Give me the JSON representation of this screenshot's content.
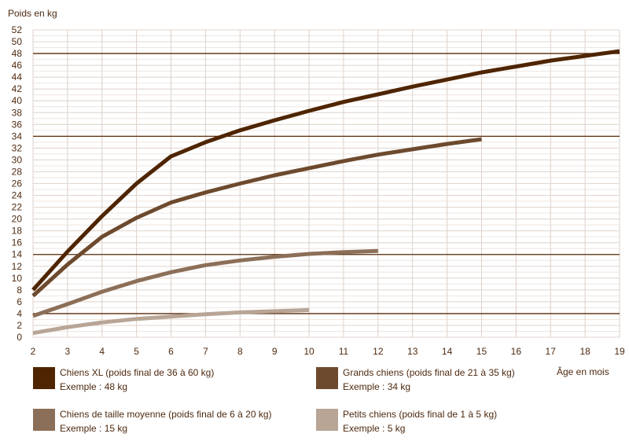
{
  "chart_data": {
    "type": "line",
    "ylabel": "Poids en kg",
    "xlabel": "Âge en mois",
    "xlim": [
      2,
      19
    ],
    "ylim": [
      0,
      52
    ],
    "x_ticks": [
      2,
      3,
      4,
      5,
      6,
      7,
      8,
      9,
      10,
      11,
      12,
      13,
      14,
      15,
      16,
      17,
      18,
      19
    ],
    "y_ticks": [
      0,
      2,
      4,
      6,
      8,
      10,
      12,
      14,
      16,
      18,
      20,
      22,
      24,
      26,
      28,
      30,
      32,
      34,
      36,
      38,
      40,
      42,
      44,
      46,
      48,
      50,
      52
    ],
    "grid": true,
    "reference_lines": [
      48,
      34,
      14,
      4
    ],
    "series": [
      {
        "name": "Chiens XL (poids final de 36 à 60 kg)",
        "example": "Exemple : 48 kg",
        "color": "#4e2500",
        "x": [
          2,
          3,
          4,
          5,
          6,
          7,
          8,
          9,
          10,
          11,
          12,
          13,
          14,
          15,
          16,
          17,
          18,
          19
        ],
        "y": [
          8,
          14.5,
          20.5,
          26,
          30.6,
          33,
          35,
          36.7,
          38.3,
          39.8,
          41.1,
          42.4,
          43.6,
          44.8,
          45.8,
          46.8,
          47.6,
          48.4
        ]
      },
      {
        "name": "Grands chiens (poids final de 21 à 35 kg)",
        "example": "Exemple : 34 kg",
        "color": "#6d4a2e",
        "x": [
          2,
          3,
          4,
          5,
          6,
          7,
          8,
          9,
          10,
          11,
          12,
          13,
          14,
          15
        ],
        "y": [
          7,
          12.3,
          17,
          20.2,
          22.8,
          24.5,
          26,
          27.4,
          28.6,
          29.8,
          30.9,
          31.8,
          32.7,
          33.5
        ]
      },
      {
        "name": "Chiens de taille moyenne (poids final de 6 à 20 kg)",
        "example": "Exemple : 15 kg",
        "color": "#8c6f58",
        "x": [
          2,
          3,
          4,
          5,
          6,
          7,
          8,
          9,
          10,
          11,
          12
        ],
        "y": [
          3.6,
          5.6,
          7.7,
          9.5,
          11,
          12.2,
          13,
          13.6,
          14.1,
          14.4,
          14.6
        ]
      },
      {
        "name": "Petits chiens (poids final de 1 à 5 kg)",
        "example": "Exemple : 5 kg",
        "color": "#b8a596",
        "x": [
          2,
          3,
          4,
          5,
          6,
          7,
          8,
          9,
          10
        ],
        "y": [
          0.7,
          1.7,
          2.5,
          3.1,
          3.5,
          3.9,
          4.2,
          4.4,
          4.6
        ]
      }
    ],
    "legend_placement": "bottom"
  }
}
